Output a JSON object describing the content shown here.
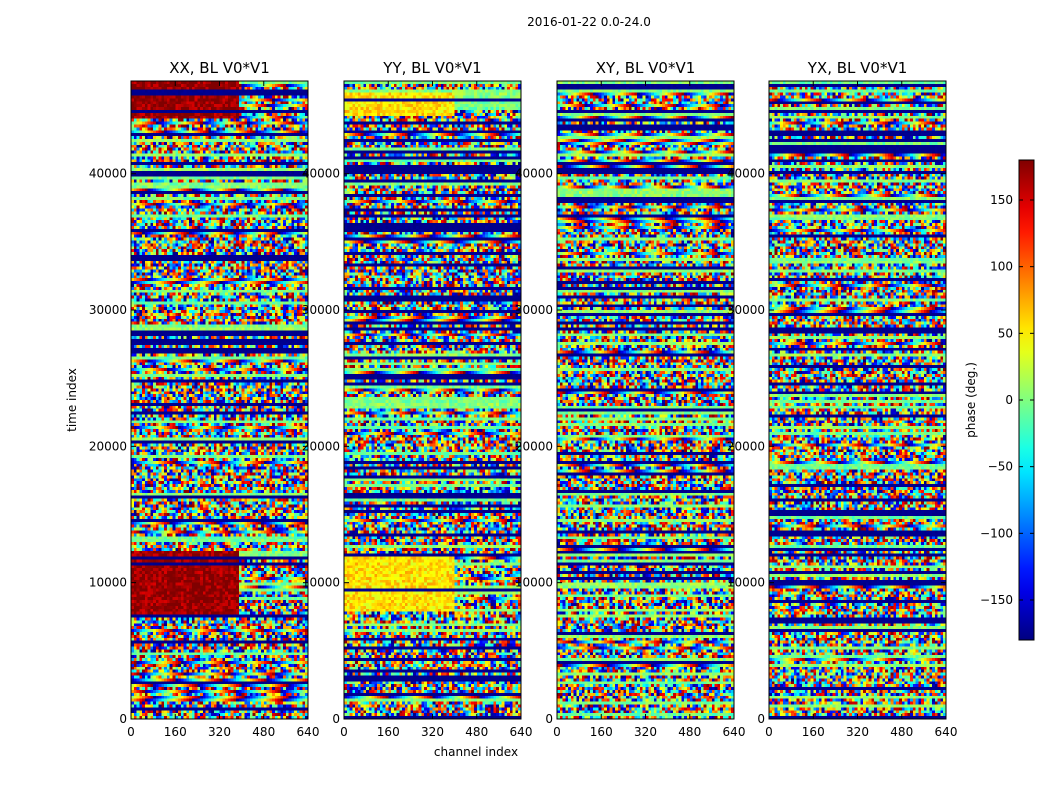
{
  "chart_data": {
    "type": "heatmap",
    "suptitle": "2016-01-22 0.0-24.0",
    "panels": [
      {
        "title": "XX, BL V0*V1",
        "seed": 11,
        "strong": {
          "lo": 0,
          "hi": 390,
          "ranges": [
            [
              7700,
              12300
            ],
            [
              44000,
              46800
            ]
          ],
          "value": 172
        }
      },
      {
        "title": "YY, BL V0*V1",
        "seed": 23,
        "strong": {
          "lo": 0,
          "hi": 400,
          "ranges": [
            [
              7800,
              12000
            ],
            [
              44300,
              46000
            ]
          ],
          "value": 55
        }
      },
      {
        "title": "XY, BL V0*V1",
        "seed": 37,
        "strong": null
      },
      {
        "title": "YX, BL V0*V1",
        "seed": 53,
        "strong": null
      }
    ],
    "xlabel": "channel index",
    "ylabel": "time index",
    "xlim": [
      0,
      640
    ],
    "ylim": [
      0,
      46800
    ],
    "xticks": [
      0,
      160,
      320,
      480,
      640
    ],
    "yticks": [
      0,
      10000,
      20000,
      30000,
      40000
    ],
    "xtick_labels": [
      "0",
      "160",
      "320",
      "480",
      "640"
    ],
    "ytick_labels": [
      "0",
      "10000",
      "20000",
      "30000",
      "40000"
    ],
    "colorbar": {
      "label": "phase (deg.)",
      "cmap": "jet",
      "vmin": -180,
      "vmax": 180,
      "ticks": [
        -150,
        -100,
        -50,
        0,
        50,
        100,
        150
      ],
      "tick_labels": [
        "−150",
        "−100",
        "−50",
        "0",
        "50",
        "100",
        "150"
      ]
    }
  }
}
